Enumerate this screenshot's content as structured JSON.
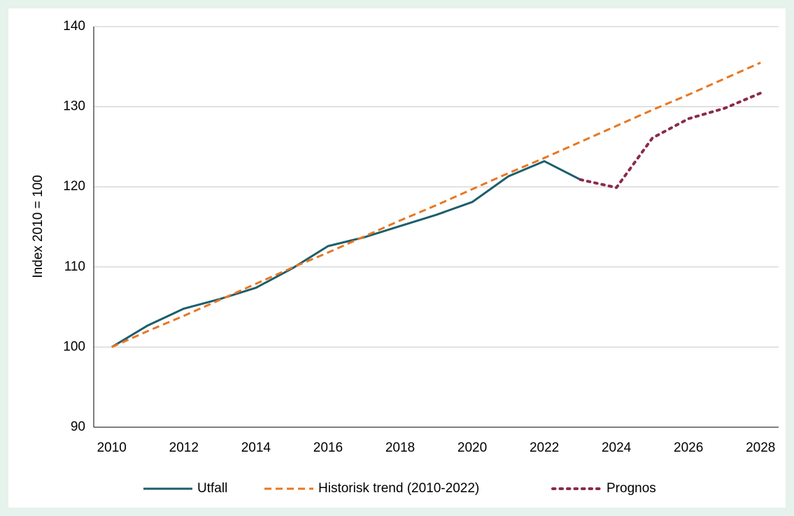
{
  "chart_data": {
    "type": "line",
    "x": [
      2010,
      2011,
      2012,
      2013,
      2014,
      2015,
      2016,
      2017,
      2018,
      2019,
      2020,
      2021,
      2022,
      2023,
      2024,
      2025,
      2026,
      2027,
      2028
    ],
    "series": [
      {
        "name": "Utfall",
        "color": "#1d5e6c",
        "dash": "solid",
        "values": [
          100,
          102.7,
          104.8,
          106.0,
          107.4,
          109.8,
          112.6,
          113.7,
          115.1,
          116.5,
          118.1,
          121.3,
          123.2,
          120.9,
          null,
          null,
          null,
          null,
          null
        ]
      },
      {
        "name": "Historisk trend (2010-2022)",
        "color": "#e87722",
        "dash": "dashed",
        "values": [
          100,
          102.0,
          103.9,
          105.9,
          107.9,
          109.9,
          111.8,
          113.8,
          115.8,
          117.7,
          119.7,
          121.7,
          123.6,
          125.6,
          127.6,
          129.6,
          131.5,
          133.5,
          135.5
        ]
      },
      {
        "name": "Prognos",
        "color": "#8a2b48",
        "dash": "dotted",
        "values": [
          null,
          null,
          null,
          null,
          null,
          null,
          null,
          null,
          null,
          null,
          null,
          null,
          null,
          120.9,
          119.9,
          126.1,
          128.5,
          129.8,
          131.7
        ]
      }
    ],
    "ylabel": "Index 2010 = 100",
    "xlim": [
      2009.5,
      2028.5
    ],
    "xticks": [
      2010,
      2012,
      2014,
      2016,
      2018,
      2020,
      2022,
      2024,
      2026,
      2028
    ],
    "ylim": [
      90,
      140
    ],
    "yticks": [
      90,
      100,
      110,
      120,
      130,
      140
    ],
    "grid": true,
    "legend": "bottom"
  }
}
